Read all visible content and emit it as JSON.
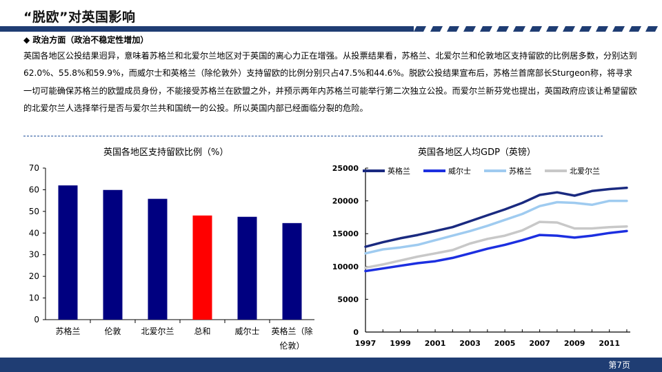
{
  "slide": {
    "title": "“脱欧”对英国影响",
    "section_heading": "◆ 政治方面（政治不稳定性增加）",
    "paragraph": "英国各地区公投结果迥异，意味着苏格兰和北爱尔兰地区对于英国的离心力正在增强。从投票结果看，苏格兰、北爱尔兰和伦敦地区支持留欧的比例居多数，分别达到62.0%、55.8%和59.9%，而威尔士和英格兰（除伦敦外）支持留欧的比例分别只占47.5%和44.6%。脱欧公投结果宣布后，苏格兰首席部长Sturgeon称，将寻求一切可能确保苏格兰的欧盟成员身份，不能接受苏格兰在欧盟之外，并预示两年内苏格兰可能举行第二次独立公投。而爱尔兰新芬党也提出，英国政府应该让希望留欧的北爱尔兰人选择举行是否与爱尔兰共和国统一的公投。所以英国内部已经面临分裂的危险。",
    "page_number": "第7页"
  },
  "colors": {
    "navy": "#000080",
    "highlight_red": "#ff0000",
    "title_bar": "#1f3d73",
    "footer": "#1f3d73",
    "england_line": "#1a2a80",
    "wales_line": "#1c2fe0",
    "scotland_line": "#9fcbf0",
    "ni_line": "#c8c8c8"
  },
  "chart_data": [
    {
      "type": "bar",
      "title": "英国各地区支持留欧比例（%）",
      "categories": [
        "苏格兰",
        "伦敦",
        "北爱尔兰",
        "总和",
        "威尔士",
        "英格兰（除伦敦）"
      ],
      "category_lines": [
        [
          "苏格兰"
        ],
        [
          "伦敦"
        ],
        [
          "北爱尔兰"
        ],
        [
          "总和"
        ],
        [
          "威尔士"
        ],
        [
          "英格兰（除",
          "伦敦）"
        ]
      ],
      "values": [
        62.0,
        59.9,
        55.8,
        48.1,
        47.5,
        44.6
      ],
      "highlight_index": 3,
      "ylim": [
        0,
        70
      ],
      "yticks": [
        0,
        10,
        20,
        30,
        40,
        50,
        60,
        70
      ],
      "grid": false
    },
    {
      "type": "line",
      "title": "英国各地区人均GDP（英镑）",
      "xlim": [
        1997,
        2012.2
      ],
      "xticks": [
        1997,
        1999,
        2001,
        2003,
        2005,
        2007,
        2009,
        2011
      ],
      "ylim": [
        0,
        25000
      ],
      "yticks": [
        0,
        5000,
        10000,
        15000,
        20000,
        25000
      ],
      "legend_position": "top",
      "grid": false,
      "series": [
        {
          "name": "英格兰",
          "color": "#1a2a80",
          "points": [
            [
              1997,
              13000
            ],
            [
              1998,
              13700
            ],
            [
              1999,
              14300
            ],
            [
              2000,
              14800
            ],
            [
              2001,
              15400
            ],
            [
              2002,
              16000
            ],
            [
              2003,
              16900
            ],
            [
              2004,
              17800
            ],
            [
              2005,
              18700
            ],
            [
              2006,
              19700
            ],
            [
              2007,
              20900
            ],
            [
              2008,
              21300
            ],
            [
              2009,
              20800
            ],
            [
              2010,
              21500
            ],
            [
              2011,
              21800
            ],
            [
              2012,
              22000
            ]
          ]
        },
        {
          "name": "威尔士",
          "color": "#1c2fe0",
          "points": [
            [
              1997,
              9300
            ],
            [
              1998,
              9700
            ],
            [
              1999,
              10100
            ],
            [
              2000,
              10500
            ],
            [
              2001,
              10800
            ],
            [
              2002,
              11300
            ],
            [
              2003,
              12000
            ],
            [
              2004,
              12700
            ],
            [
              2005,
              13300
            ],
            [
              2006,
              14000
            ],
            [
              2007,
              14800
            ],
            [
              2008,
              14700
            ],
            [
              2009,
              14400
            ],
            [
              2010,
              14700
            ],
            [
              2011,
              15100
            ],
            [
              2012,
              15400
            ]
          ]
        },
        {
          "name": "苏格兰",
          "color": "#9fcbf0",
          "points": [
            [
              1997,
              12000
            ],
            [
              1998,
              12600
            ],
            [
              1999,
              12900
            ],
            [
              2000,
              13300
            ],
            [
              2001,
              14000
            ],
            [
              2002,
              14700
            ],
            [
              2003,
              15400
            ],
            [
              2004,
              16200
            ],
            [
              2005,
              17100
            ],
            [
              2006,
              18000
            ],
            [
              2007,
              19200
            ],
            [
              2008,
              19800
            ],
            [
              2009,
              19700
            ],
            [
              2010,
              19400
            ],
            [
              2011,
              20000
            ],
            [
              2012,
              20000
            ]
          ]
        },
        {
          "name": "北爱尔兰",
          "color": "#c8c8c8",
          "points": [
            [
              1997,
              9800
            ],
            [
              1998,
              10300
            ],
            [
              1999,
              10900
            ],
            [
              2000,
              11500
            ],
            [
              2001,
              12000
            ],
            [
              2002,
              12500
            ],
            [
              2003,
              13500
            ],
            [
              2004,
              14200
            ],
            [
              2005,
              14700
            ],
            [
              2006,
              15500
            ],
            [
              2007,
              16800
            ],
            [
              2008,
              16700
            ],
            [
              2009,
              15800
            ],
            [
              2010,
              15800
            ],
            [
              2011,
              16000
            ],
            [
              2012,
              16100
            ]
          ]
        }
      ]
    }
  ]
}
